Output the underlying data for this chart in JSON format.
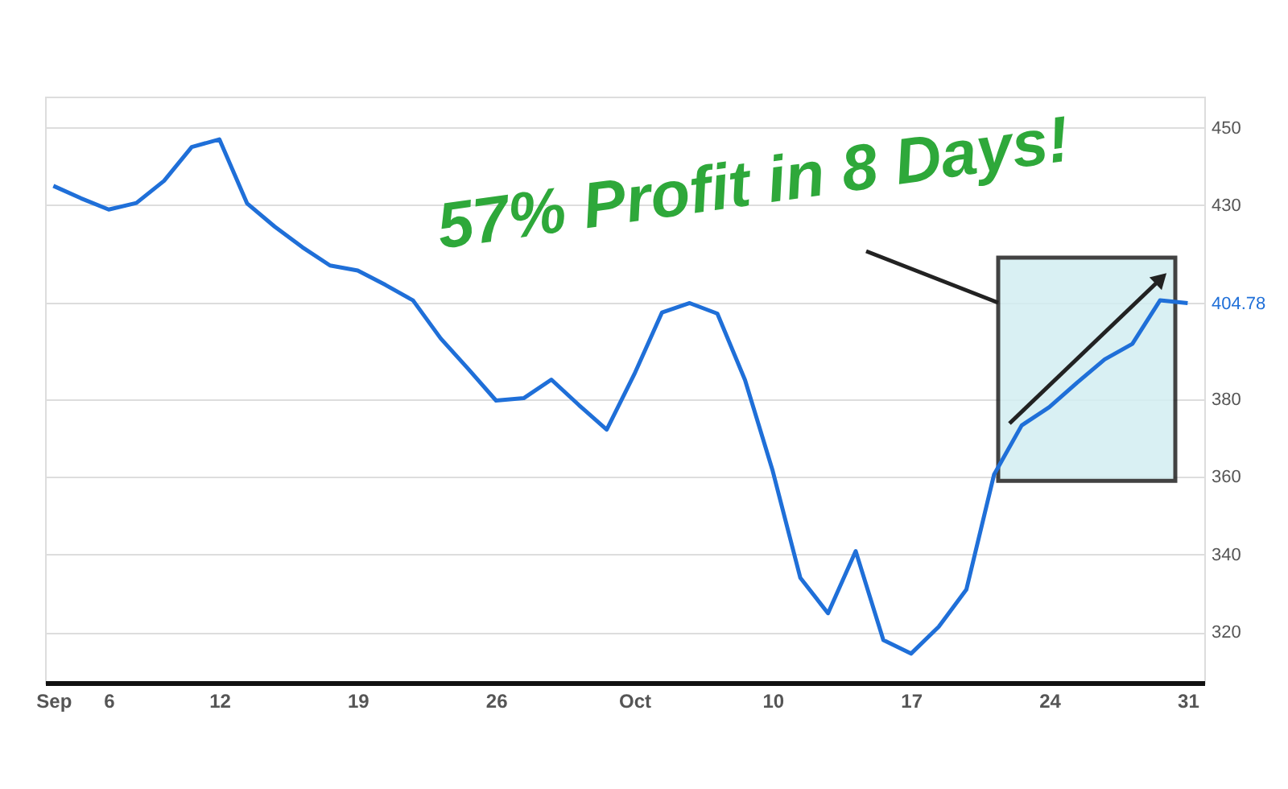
{
  "chart_data": {
    "type": "line",
    "categories": [
      "Sep",
      null,
      "6",
      null,
      null,
      null,
      "12",
      null,
      null,
      null,
      null,
      "19",
      null,
      null,
      null,
      null,
      "26",
      null,
      null,
      null,
      null,
      "Oct",
      null,
      null,
      null,
      null,
      "10",
      null,
      null,
      null,
      null,
      "17",
      null,
      null,
      null,
      null,
      "24",
      null,
      null,
      null,
      null,
      "31"
    ],
    "series": [
      {
        "color": "#1f6fd8",
        "values": [
          435,
          431.8,
          428.9,
          430.6,
          436.3,
          445,
          447,
          430.5,
          424.5,
          419.2,
          414.5,
          413.2,
          409.5,
          405.5,
          395.7,
          387.8,
          379.7,
          380.3,
          385.1,
          378.5,
          372.2,
          386.5,
          402.4,
          404.8,
          402.1,
          385,
          361.6,
          334,
          324.9,
          340.9,
          318,
          314.5,
          321.4,
          331,
          360.6,
          373.3,
          378,
          384.3,
          390.3,
          394.3,
          405.5,
          404.78
        ]
      }
    ],
    "ylim": [
      307,
      458
    ],
    "yticks": [
      320,
      340,
      360,
      380,
      {
        "value": 404.78,
        "label": "404.78"
      },
      430,
      450
    ],
    "grid": "y",
    "bands": [
      {
        "axis": "y",
        "from": 359,
        "to": 416.5,
        "color": "#d3eef1"
      }
    ],
    "annotations": [
      "57% Profit in 8 Days!"
    ]
  }
}
